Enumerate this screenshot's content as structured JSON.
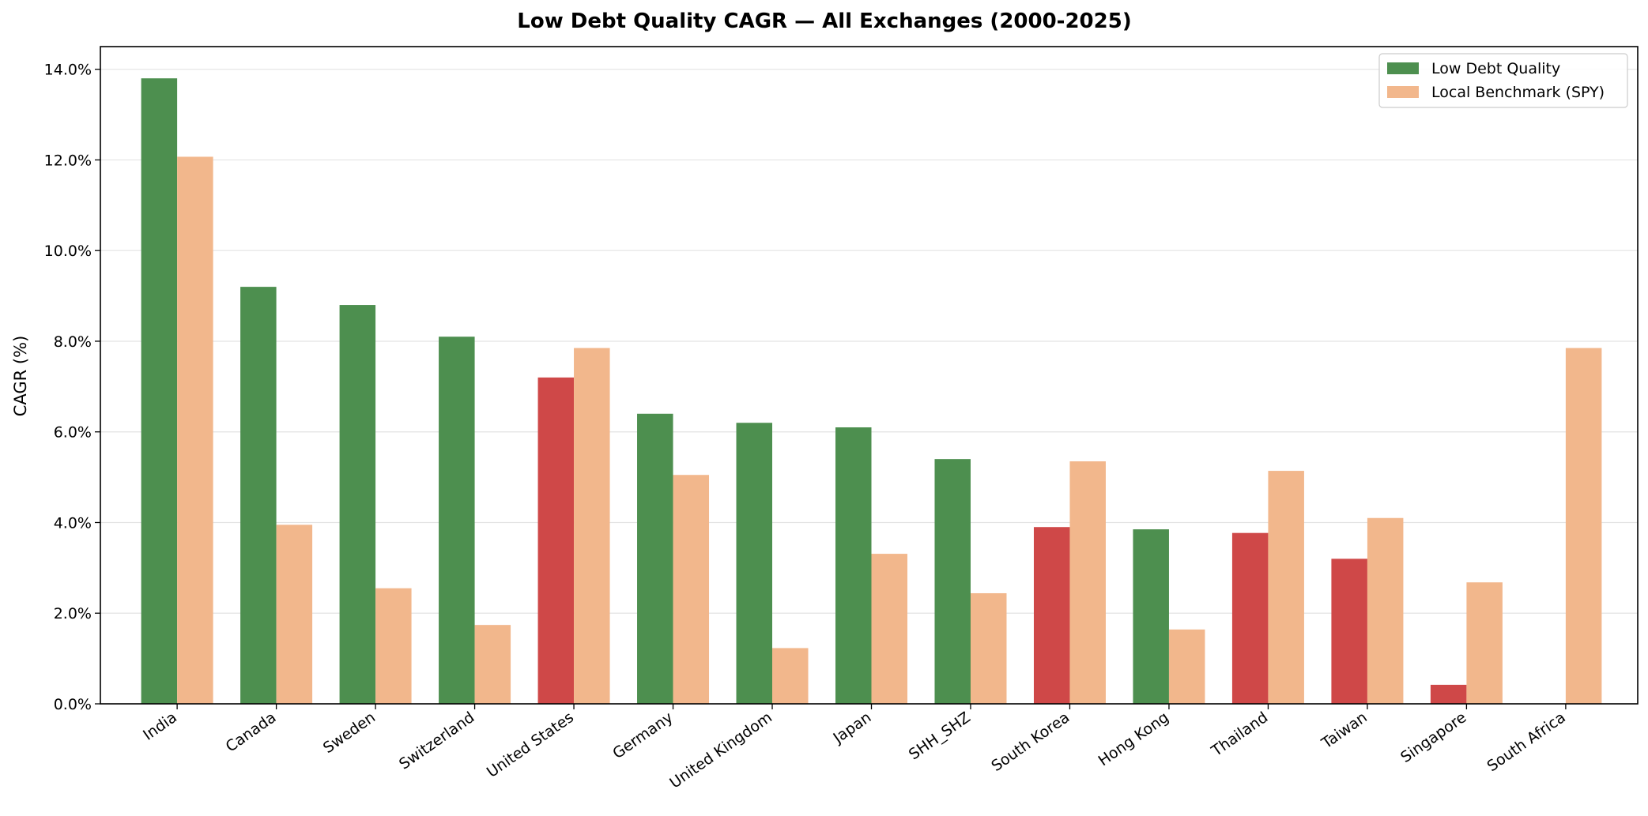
{
  "chart_data": {
    "type": "bar",
    "title": "Low Debt Quality CAGR — All Exchanges (2000-2025)",
    "xlabel": "",
    "ylabel": "CAGR (%)",
    "ylim": [
      0,
      14.5
    ],
    "yticks": [
      "0.0%",
      "2.0%",
      "4.0%",
      "6.0%",
      "8.0%",
      "10.0%",
      "12.0%",
      "14.0%"
    ],
    "grid": "horizontal",
    "legend_position": "top-right",
    "categories": [
      "India",
      "Canada",
      "Sweden",
      "Switzerland",
      "United States",
      "Germany",
      "United Kingdom",
      "Japan",
      "SHH_SHZ",
      "South Korea",
      "Hong Kong",
      "Thailand",
      "Taiwan",
      "Singapore",
      "South Africa"
    ],
    "series": [
      {
        "name": "Low Debt Quality",
        "values": [
          13.8,
          9.2,
          8.8,
          8.1,
          7.2,
          6.4,
          6.2,
          6.1,
          5.4,
          3.9,
          3.85,
          3.77,
          3.2,
          0.42,
          0
        ],
        "bar_colors": [
          "#4d8f4f",
          "#4d8f4f",
          "#4d8f4f",
          "#4d8f4f",
          "#cf4848",
          "#4d8f4f",
          "#4d8f4f",
          "#4d8f4f",
          "#4d8f4f",
          "#cf4848",
          "#4d8f4f",
          "#cf4848",
          "#cf4848",
          "#cf4848",
          "#4d8f4f"
        ]
      },
      {
        "name": "Local Benchmark (SPY)",
        "values": [
          12.07,
          3.95,
          2.55,
          1.74,
          7.85,
          5.05,
          1.23,
          3.31,
          2.44,
          5.35,
          1.64,
          5.14,
          4.1,
          2.68,
          7.85
        ],
        "color": "#f2b78c"
      }
    ],
    "colors": {
      "outperform": "#4d8f4f",
      "underperform": "#cf4848",
      "benchmark": "#f2b78c"
    }
  }
}
